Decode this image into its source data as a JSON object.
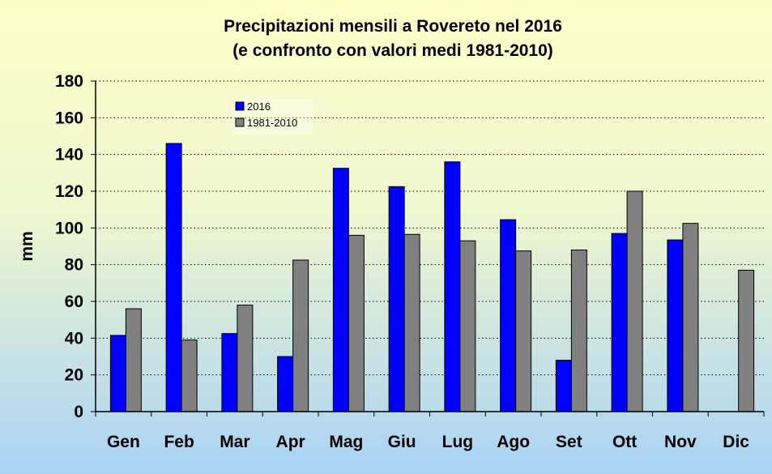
{
  "chart_data": {
    "type": "bar",
    "title": [
      "Precipitazioni mensili a Rovereto nel 2016",
      "(e confronto con valori medi 1981-2010)"
    ],
    "ylabel": "mm",
    "ylim": [
      0,
      180
    ],
    "yticks": [
      0,
      20,
      40,
      60,
      80,
      100,
      120,
      140,
      160,
      180
    ],
    "grid": true,
    "legend_position": "top-left",
    "categories": [
      "Gen",
      "Feb",
      "Mar",
      "Apr",
      "Mag",
      "Giu",
      "Lug",
      "Ago",
      "Set",
      "Ott",
      "Nov",
      "Dic"
    ],
    "series": [
      {
        "name": "2016",
        "color": "#0000ff",
        "values": [
          41.5,
          146,
          42.5,
          30,
          132.5,
          122.5,
          136,
          104.5,
          28,
          97,
          93.5,
          null
        ]
      },
      {
        "name": "1981-2010",
        "color": "#808080",
        "values": [
          56,
          39,
          58,
          82.5,
          96,
          96.5,
          93,
          87.5,
          88,
          120,
          102.5,
          77
        ]
      }
    ]
  }
}
